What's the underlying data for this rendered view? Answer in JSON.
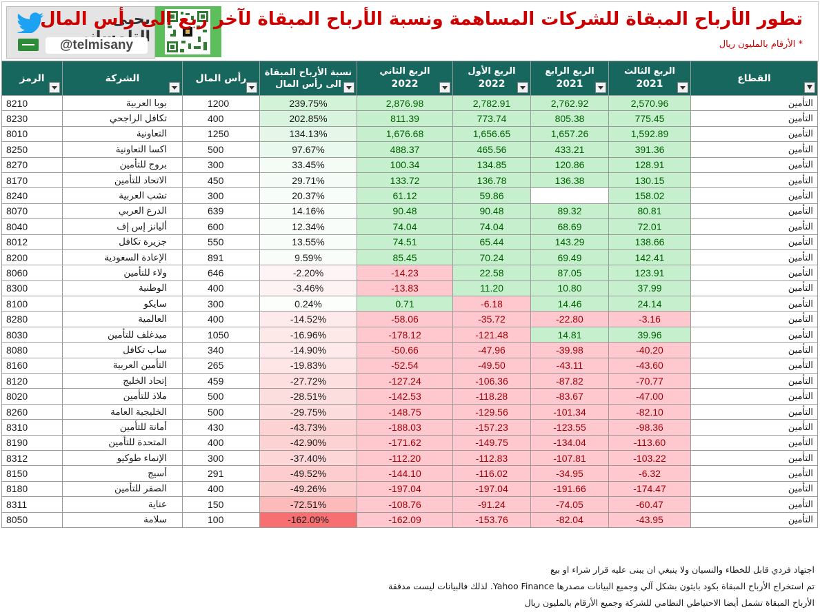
{
  "header": {
    "brand_name": "يحيى التلمساني",
    "handle": "@telmisany",
    "title": "تطور الأرباح المبقاة للشركات المساهمة ونسبة الأرباح المبقاة لآخر ربع الى رأس المال",
    "subtitle": "* الأرقام بالمليون ريال",
    "icons": [
      "twitter-bird-icon",
      "saudi-flag-icon",
      "qr-code-icon"
    ]
  },
  "table": {
    "headers": {
      "code": "الرمز",
      "company": "الشركة",
      "capital": "رأس المال",
      "ratio_line1": "نسبة الأرباح المبقاة",
      "ratio_line2": "الى رأس المال",
      "q2_2022_line1": "الربع الثاني",
      "q2_2022_line2": "2022",
      "q1_2022_line1": "الربع الأول",
      "q1_2022_line2": "2022",
      "q4_2021_line1": "الربع الرابع",
      "q4_2021_line2": "2021",
      "q3_2021_line1": "الربع الثالث",
      "q3_2021_line2": "2021",
      "sector": "القطاع"
    },
    "rows": [
      {
        "code": "8210",
        "company": "بوبا العربية",
        "capital": "1200",
        "ratio": "239.75%",
        "q2_2022": "2,876.98",
        "q1_2022": "2,782.91",
        "q4_2021": "2,762.92",
        "q3_2021": "2,570.96",
        "sector": "التأمين"
      },
      {
        "code": "8230",
        "company": "تكافل الراجحي",
        "capital": "400",
        "ratio": "202.85%",
        "q2_2022": "811.39",
        "q1_2022": "773.74",
        "q4_2021": "805.38",
        "q3_2021": "775.45",
        "sector": "التأمين"
      },
      {
        "code": "8010",
        "company": "التعاونية",
        "capital": "1250",
        "ratio": "134.13%",
        "q2_2022": "1,676.68",
        "q1_2022": "1,656.65",
        "q4_2021": "1,657.26",
        "q3_2021": "1,592.89",
        "sector": "التأمين"
      },
      {
        "code": "8250",
        "company": "اكسا التعاونية",
        "capital": "500",
        "ratio": "97.67%",
        "q2_2022": "488.37",
        "q1_2022": "465.56",
        "q4_2021": "433.21",
        "q3_2021": "391.36",
        "sector": "التأمين"
      },
      {
        "code": "8270",
        "company": "بروج للتأمين",
        "capital": "300",
        "ratio": "33.45%",
        "q2_2022": "100.34",
        "q1_2022": "134.85",
        "q4_2021": "120.86",
        "q3_2021": "128.91",
        "sector": "التأمين"
      },
      {
        "code": "8170",
        "company": "الاتحاد للتأمين",
        "capital": "450",
        "ratio": "29.71%",
        "q2_2022": "133.72",
        "q1_2022": "136.78",
        "q4_2021": "136.38",
        "q3_2021": "130.15",
        "sector": "التأمين"
      },
      {
        "code": "8240",
        "company": "تشب العربية",
        "capital": "300",
        "ratio": "20.37%",
        "q2_2022": "61.12",
        "q1_2022": "59.86",
        "q4_2021": "",
        "q3_2021": "158.02",
        "sector": "التأمين"
      },
      {
        "code": "8070",
        "company": "الدرع العربي",
        "capital": "639",
        "ratio": "14.16%",
        "q2_2022": "90.48",
        "q1_2022": "90.48",
        "q4_2021": "89.32",
        "q3_2021": "80.81",
        "sector": "التأمين"
      },
      {
        "code": "8040",
        "company": "أليانز إس إف",
        "capital": "600",
        "ratio": "12.34%",
        "q2_2022": "74.04",
        "q1_2022": "74.04",
        "q4_2021": "68.69",
        "q3_2021": "72.01",
        "sector": "التأمين"
      },
      {
        "code": "8012",
        "company": "جزيرة تكافل",
        "capital": "550",
        "ratio": "13.55%",
        "q2_2022": "74.51",
        "q1_2022": "65.44",
        "q4_2021": "143.29",
        "q3_2021": "138.66",
        "sector": "التأمين"
      },
      {
        "code": "8200",
        "company": "الإعادة السعودية",
        "capital": "891",
        "ratio": "9.59%",
        "q2_2022": "85.45",
        "q1_2022": "70.24",
        "q4_2021": "69.49",
        "q3_2021": "142.41",
        "sector": "التأمين"
      },
      {
        "code": "8060",
        "company": "ولاء للتأمين",
        "capital": "646",
        "ratio": "-2.20%",
        "q2_2022": "-14.23",
        "q1_2022": "22.58",
        "q4_2021": "87.05",
        "q3_2021": "123.91",
        "sector": "التأمين"
      },
      {
        "code": "8300",
        "company": "الوطنية",
        "capital": "400",
        "ratio": "-3.46%",
        "q2_2022": "-13.83",
        "q1_2022": "11.20",
        "q4_2021": "10.80",
        "q3_2021": "37.99",
        "sector": "التأمين"
      },
      {
        "code": "8100",
        "company": "سايكو",
        "capital": "300",
        "ratio": "0.24%",
        "q2_2022": "0.71",
        "q1_2022": "-6.18",
        "q4_2021": "14.46",
        "q3_2021": "24.14",
        "sector": "التأمين"
      },
      {
        "code": "8280",
        "company": "العالمية",
        "capital": "400",
        "ratio": "-14.52%",
        "q2_2022": "-58.06",
        "q1_2022": "-35.72",
        "q4_2021": "-22.80",
        "q3_2021": "-3.16",
        "sector": "التأمين"
      },
      {
        "code": "8030",
        "company": "ميدغلف للتأمين",
        "capital": "1050",
        "ratio": "-16.96%",
        "q2_2022": "-178.12",
        "q1_2022": "-121.48",
        "q4_2021": "14.81",
        "q3_2021": "39.96",
        "sector": "التأمين"
      },
      {
        "code": "8080",
        "company": "ساب تكافل",
        "capital": "340",
        "ratio": "-14.90%",
        "q2_2022": "-50.66",
        "q1_2022": "-47.96",
        "q4_2021": "-39.98",
        "q3_2021": "-40.20",
        "sector": "التأمين"
      },
      {
        "code": "8160",
        "company": "التأمين العربية",
        "capital": "265",
        "ratio": "-19.83%",
        "q2_2022": "-52.54",
        "q1_2022": "-49.50",
        "q4_2021": "-43.11",
        "q3_2021": "-43.60",
        "sector": "التأمين"
      },
      {
        "code": "8120",
        "company": "إتحاد الخليج",
        "capital": "459",
        "ratio": "-27.72%",
        "q2_2022": "-127.24",
        "q1_2022": "-106.36",
        "q4_2021": "-87.82",
        "q3_2021": "-70.77",
        "sector": "التأمين"
      },
      {
        "code": "8020",
        "company": "ملاذ للتأمين",
        "capital": "500",
        "ratio": "-28.51%",
        "q2_2022": "-142.53",
        "q1_2022": "-118.28",
        "q4_2021": "-83.67",
        "q3_2021": "-47.00",
        "sector": "التأمين"
      },
      {
        "code": "8260",
        "company": "الخليجية العامة",
        "capital": "500",
        "ratio": "-29.75%",
        "q2_2022": "-148.75",
        "q1_2022": "-129.56",
        "q4_2021": "-101.34",
        "q3_2021": "-82.10",
        "sector": "التأمين"
      },
      {
        "code": "8310",
        "company": "أمانة للتأمين",
        "capital": "430",
        "ratio": "-43.73%",
        "q2_2022": "-188.03",
        "q1_2022": "-157.23",
        "q4_2021": "-123.55",
        "q3_2021": "-98.36",
        "sector": "التأمين"
      },
      {
        "code": "8190",
        "company": "المتحدة للتأمين",
        "capital": "400",
        "ratio": "-42.90%",
        "q2_2022": "-171.62",
        "q1_2022": "-149.75",
        "q4_2021": "-134.04",
        "q3_2021": "-113.60",
        "sector": "التأمين"
      },
      {
        "code": "8312",
        "company": "الإنماء طوكيو",
        "capital": "300",
        "ratio": "-37.40%",
        "q2_2022": "-112.20",
        "q1_2022": "-112.83",
        "q4_2021": "-107.81",
        "q3_2021": "-103.22",
        "sector": "التأمين"
      },
      {
        "code": "8150",
        "company": "أسيج",
        "capital": "291",
        "ratio": "-49.52%",
        "q2_2022": "-144.10",
        "q1_2022": "-116.02",
        "q4_2021": "-34.95",
        "q3_2021": "-6.32",
        "sector": "التأمين"
      },
      {
        "code": "8180",
        "company": "الصقر للتأمين",
        "capital": "400",
        "ratio": "-49.26%",
        "q2_2022": "-197.04",
        "q1_2022": "-197.04",
        "q4_2021": "-191.66",
        "q3_2021": "-174.47",
        "sector": "التأمين"
      },
      {
        "code": "8311",
        "company": "عناية",
        "capital": "150",
        "ratio": "-72.51%",
        "q2_2022": "-108.76",
        "q1_2022": "-91.24",
        "q4_2021": "-74.05",
        "q3_2021": "-60.47",
        "sector": "التأمين"
      },
      {
        "code": "8050",
        "company": "سلامة",
        "capital": "100",
        "ratio": "-162.09%",
        "q2_2022": "-162.09",
        "q1_2022": "-153.76",
        "q4_2021": "-82.04",
        "q3_2021": "-43.95",
        "sector": "التأمين"
      }
    ]
  },
  "footer_notes": [
    "اجتهاد فردي قابل للخطاء والنسيان ولا ينبغي ان يبنى عليه قرار شراء او بيع",
    "تم استخراج الأرباح المبقاة بكود بايثون بشكل آلي وجميع البيانات مصدرها Yahoo Finance. لذلك فالبيانات ليست مدققة",
    "الأرباح المبقاة تشمل أيضا الاحتياطي النظامي للشركة وجميع الأرقام بالمليون ريال"
  ],
  "colors": {
    "header_green": "#17675e",
    "title_red": "#cc0000",
    "positive_fill": "#c6efce",
    "positive_text": "#006100",
    "negative_fill": "#ffc7ce",
    "negative_text": "#9c0006"
  }
}
